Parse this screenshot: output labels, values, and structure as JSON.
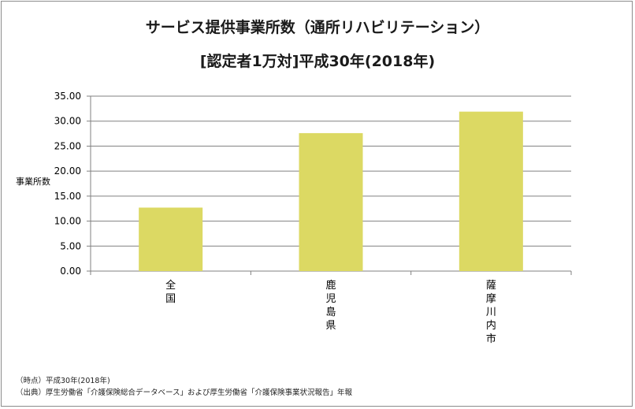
{
  "chart_data": {
    "type": "bar",
    "title": "サービス提供事業所数（通所リハビリテーション）",
    "subtitle": "[認定者1万対]平成30年(2018年)",
    "ylabel": "事業所数",
    "xlabel": "",
    "categories": [
      "全国",
      "鹿児島県",
      "薩摩川内市"
    ],
    "values": [
      12.7,
      27.6,
      31.9
    ],
    "ylim": [
      0,
      35
    ],
    "ytick_labels": [
      "0.00",
      "5.00",
      "10.00",
      "15.00",
      "20.00",
      "25.00",
      "30.00",
      "35.00"
    ],
    "grid": true,
    "bar_color": "#dcd963"
  },
  "notes": [
    "（時点）平成30年(2018年)",
    "（出典）厚生労働省「介護保険総合データベース」および厚生労働省「介護保険事業状況報告」年報"
  ],
  "colors": {
    "grid": "#808080",
    "axis": "#808080",
    "text": "#000000"
  }
}
